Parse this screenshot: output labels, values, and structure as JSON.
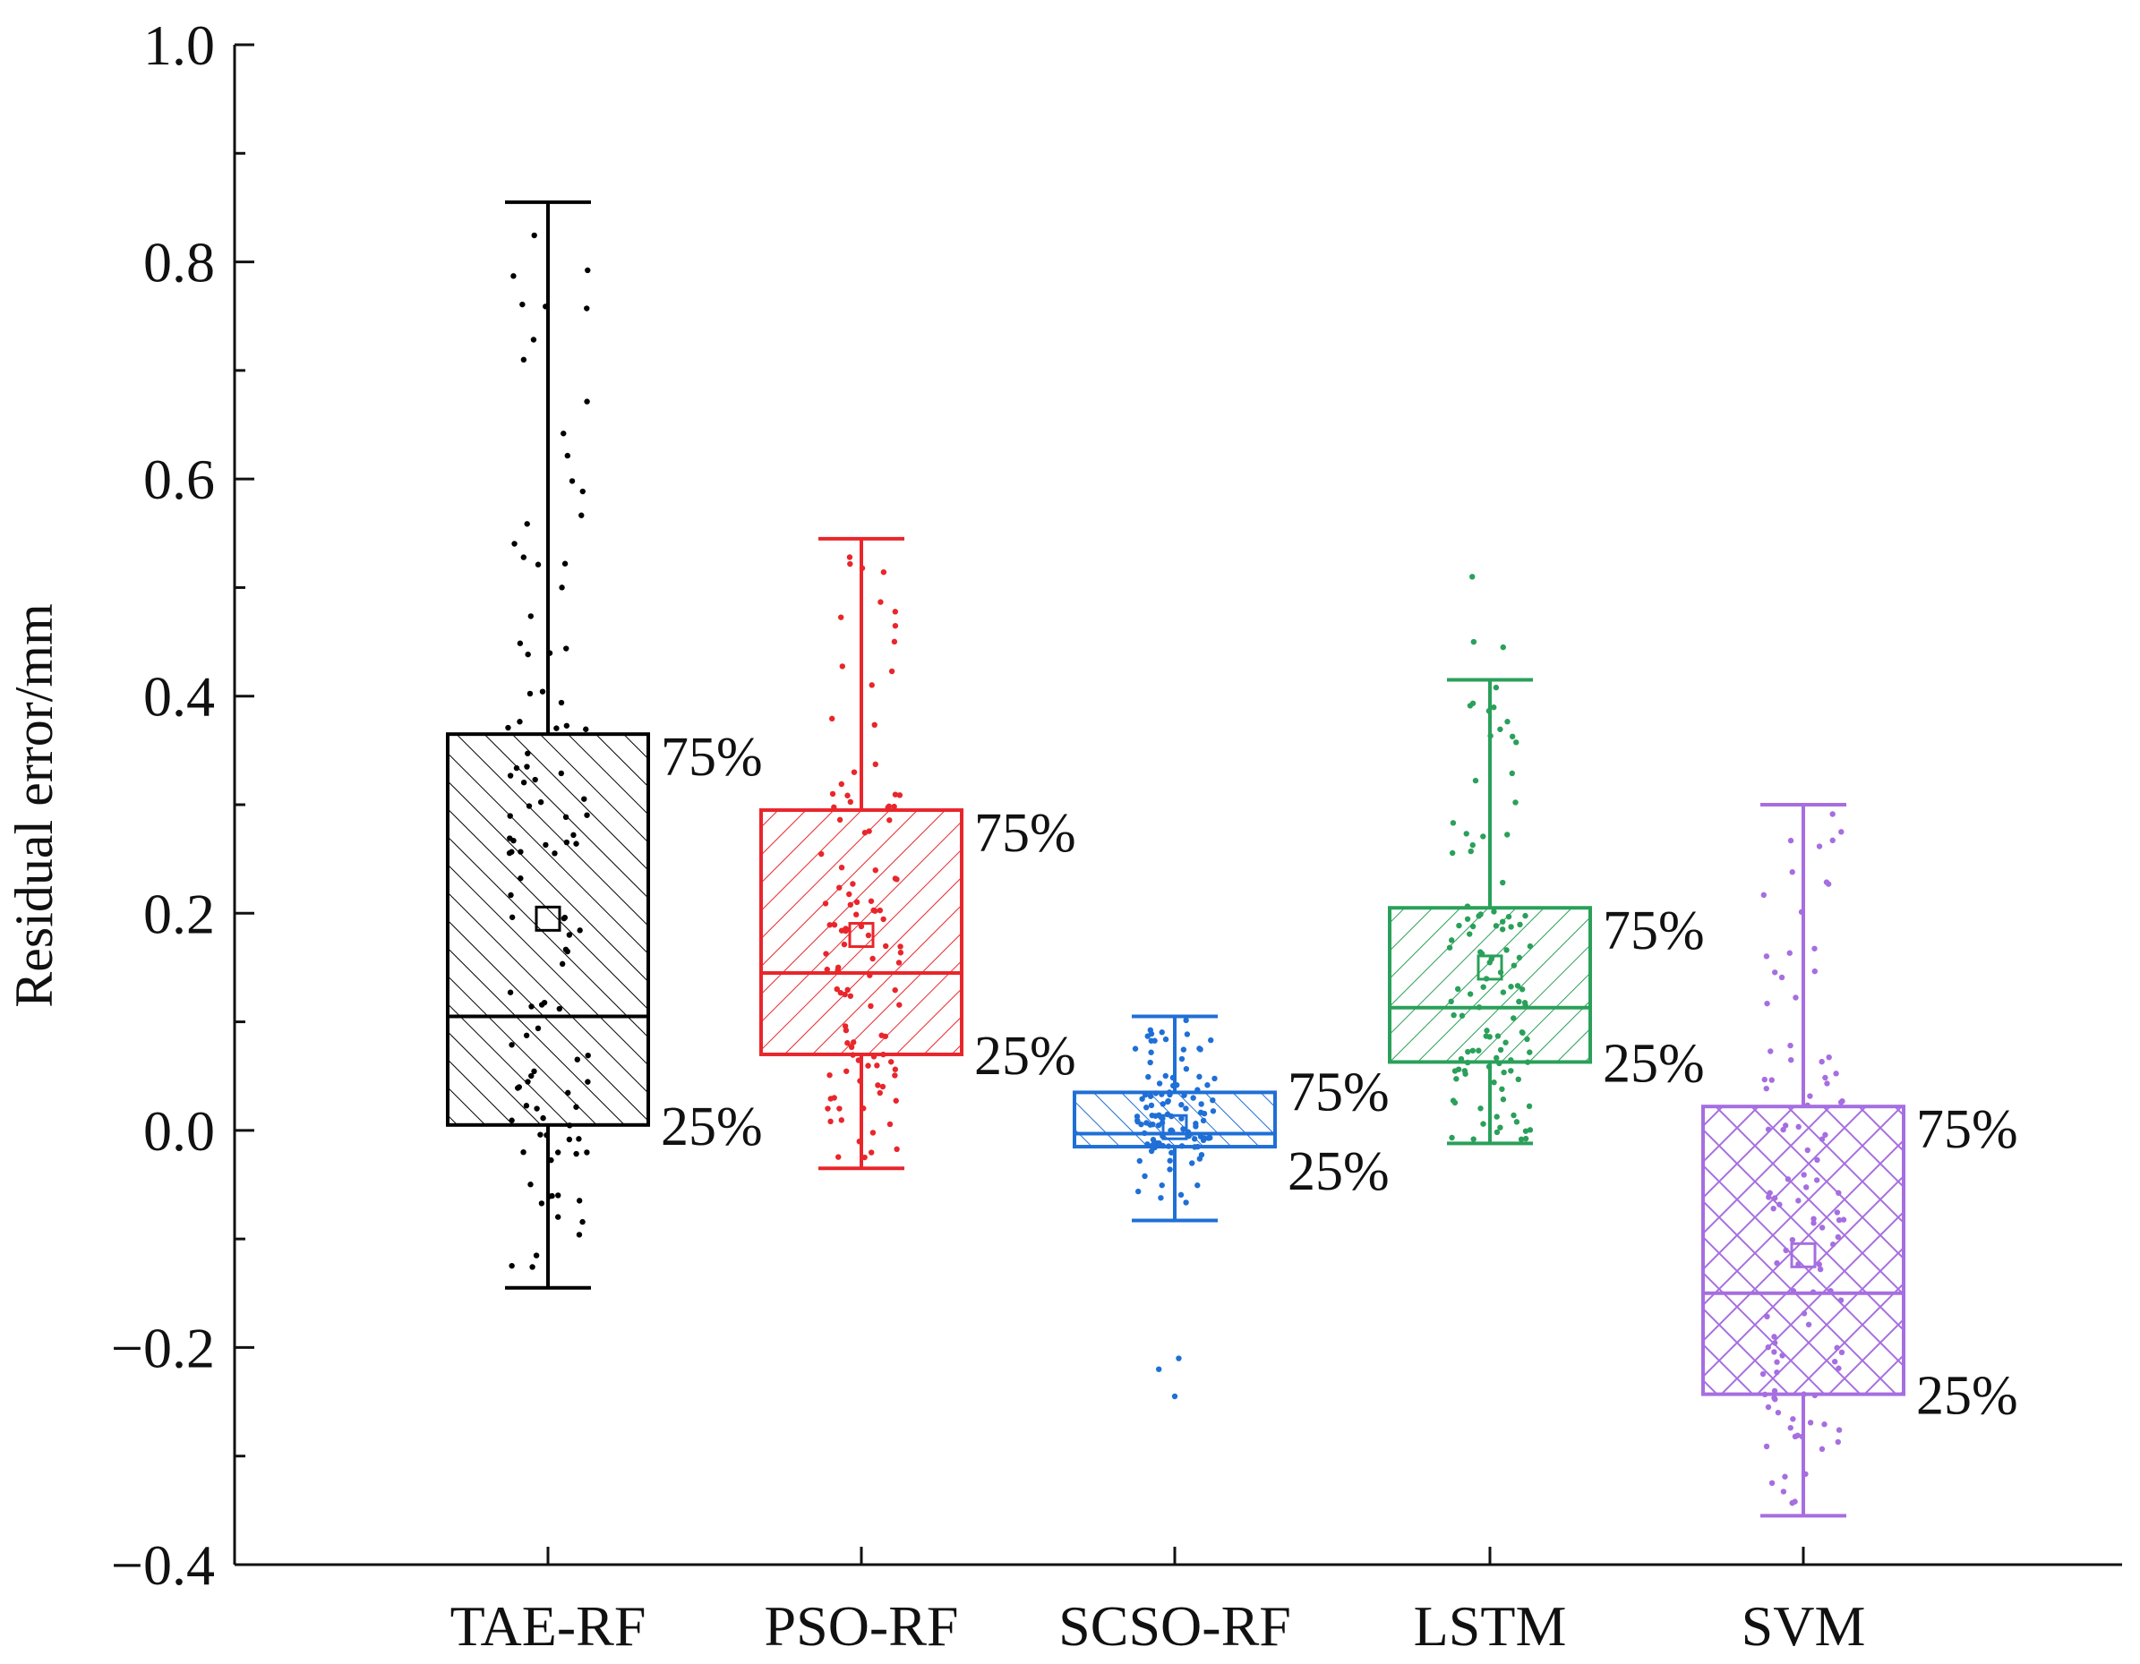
{
  "chart_data": {
    "type": "box",
    "title": "",
    "xlabel": "",
    "ylabel": "Residual error/mm",
    "ylim": [
      -0.4,
      1.0
    ],
    "yticks": [
      -0.4,
      -0.2,
      0.0,
      0.2,
      0.4,
      0.6,
      0.8,
      1.0
    ],
    "ytick_labels": [
      "−0.4",
      "−0.2",
      "0.0",
      "0.2",
      "0.4",
      "0.6",
      "0.8",
      "1.0"
    ],
    "categories": [
      "TAE-RF",
      "PSO-RF",
      "SCSO-RF",
      "LSTM",
      "SVM"
    ],
    "series": [
      {
        "name": "TAE-RF",
        "color": "#000000",
        "hatch": "diag-up",
        "whisker_low": -0.145,
        "q1": 0.005,
        "median": 0.105,
        "q3": 0.365,
        "whisker_high": 0.855,
        "mean": 0.195,
        "q1_label": "25%",
        "q3_label": "75%"
      },
      {
        "name": "PSO-RF",
        "color": "#e8262b",
        "hatch": "diag-down",
        "whisker_low": -0.035,
        "q1": 0.07,
        "median": 0.145,
        "q3": 0.295,
        "whisker_high": 0.545,
        "mean": 0.18,
        "q1_label": "25%",
        "q3_label": "75%"
      },
      {
        "name": "SCSO-RF",
        "color": "#1f6fd6",
        "hatch": "diag-up",
        "whisker_low": -0.083,
        "q1": -0.015,
        "median": -0.003,
        "q3": 0.035,
        "whisker_high": 0.105,
        "mean": 0.003,
        "outliers": [
          -0.21,
          -0.22,
          -0.245
        ],
        "q1_label": "25%",
        "q3_label": "75%"
      },
      {
        "name": "LSTM",
        "color": "#2aa05a",
        "hatch": "diag-down",
        "whisker_low": -0.012,
        "q1": 0.063,
        "median": 0.113,
        "q3": 0.205,
        "whisker_high": 0.415,
        "mean": 0.15,
        "outliers": [
          0.51,
          0.45,
          0.445
        ],
        "q1_label": "25%",
        "q3_label": "75%"
      },
      {
        "name": "SVM",
        "color": "#a66ee0",
        "hatch": "cross",
        "whisker_low": -0.355,
        "q1": -0.243,
        "median": -0.15,
        "q3": 0.022,
        "whisker_high": 0.3,
        "mean": -0.115,
        "q1_label": "25%",
        "q3_label": "75%"
      }
    ],
    "grid": false,
    "legend": "none"
  }
}
